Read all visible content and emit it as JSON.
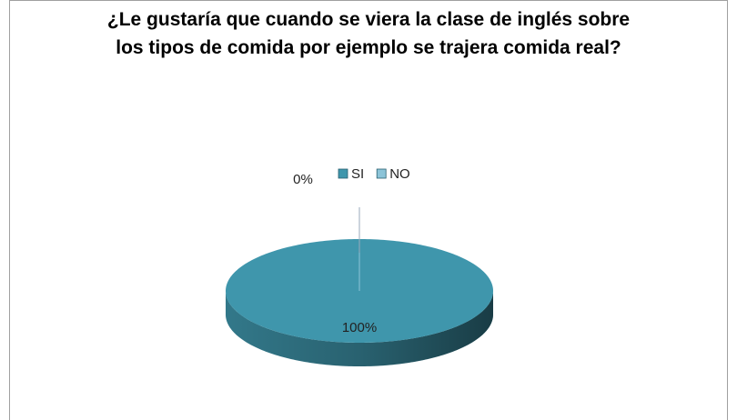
{
  "chart_data": {
    "type": "pie",
    "title": "¿Le gustaría que cuando se viera la clase de inglés sobre los tipos de comida por ejemplo se trajera comida real?",
    "categories": [
      "SI",
      "NO"
    ],
    "values": [
      100,
      0
    ],
    "value_labels": [
      "100%",
      "0%"
    ],
    "colors": [
      "#3f96ac",
      "#8cc4d8"
    ],
    "legend": "top"
  }
}
